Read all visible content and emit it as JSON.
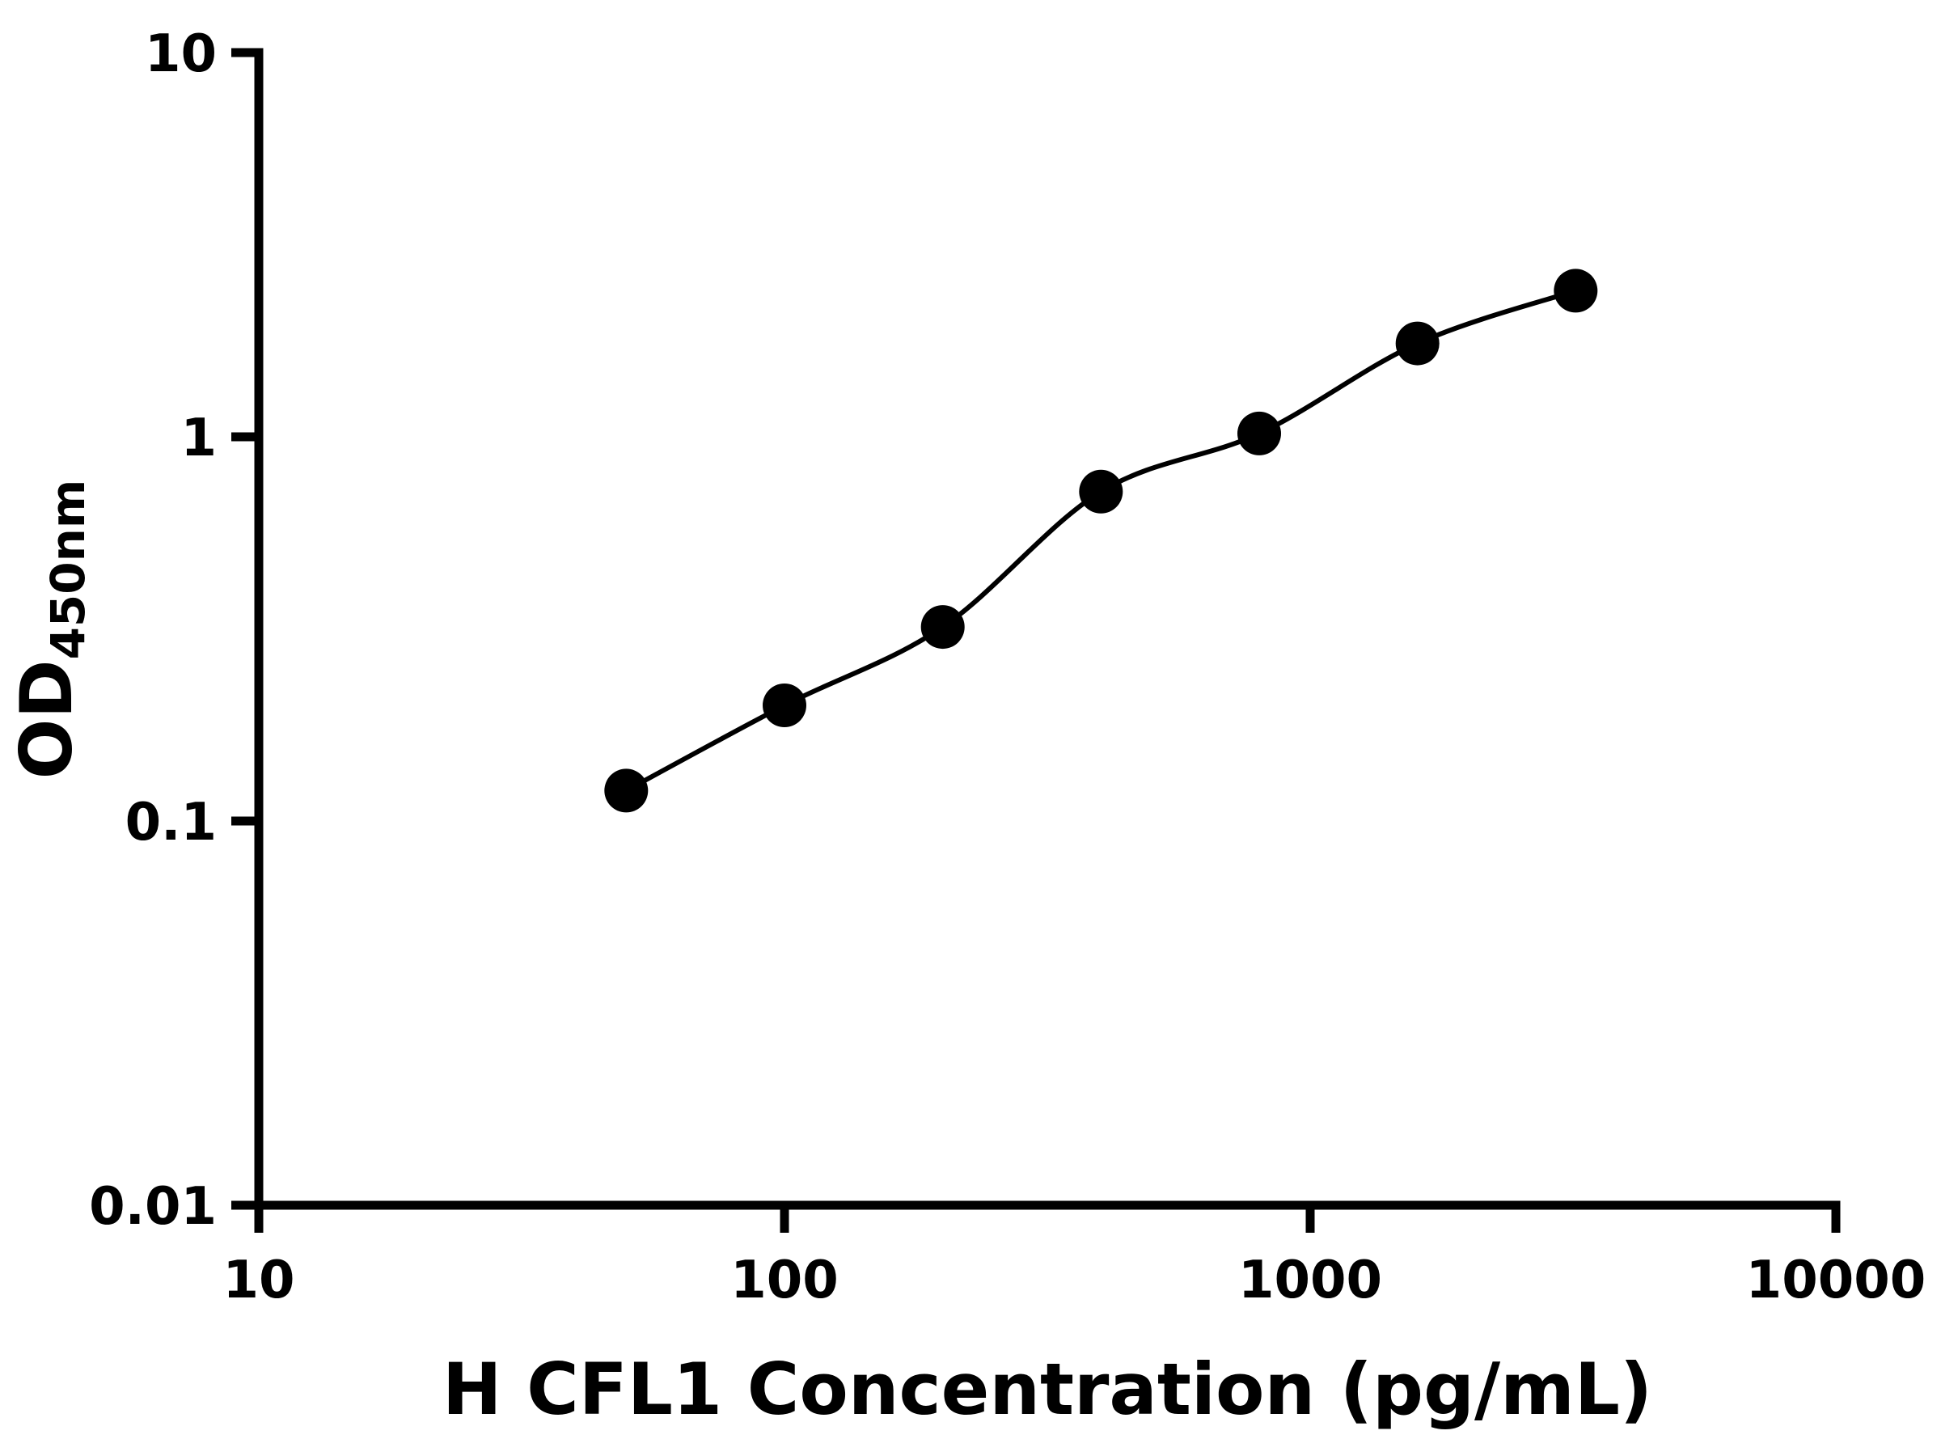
{
  "chart_data": {
    "type": "scatter",
    "title": "",
    "xlabel": "H CFL1 Concentration (pg/mL)",
    "ylabel_base": "OD",
    "ylabel_sub": "450nm",
    "xscale": "log",
    "yscale": "log",
    "xlim": [
      10,
      10000
    ],
    "ylim": [
      0.01,
      10
    ],
    "grid": false,
    "legend": "none",
    "x": [
      50,
      100,
      200,
      400,
      800,
      1600,
      3200
    ],
    "y": [
      0.12,
      0.2,
      0.32,
      0.72,
      1.02,
      1.75,
      2.4
    ],
    "x_ticks": [
      {
        "v": 10,
        "label": "10"
      },
      {
        "v": 100,
        "label": "100"
      },
      {
        "v": 1000,
        "label": "1000"
      },
      {
        "v": 10000,
        "label": "10000"
      }
    ],
    "y_ticks": [
      {
        "v": 0.01,
        "label": "0.01"
      },
      {
        "v": 0.1,
        "label": "0.1"
      },
      {
        "v": 1,
        "label": "1"
      },
      {
        "v": 10,
        "label": "10"
      }
    ],
    "marker_color": "#000000",
    "line_color": "#000000",
    "axis_color": "#000000",
    "background": "#ffffff"
  }
}
